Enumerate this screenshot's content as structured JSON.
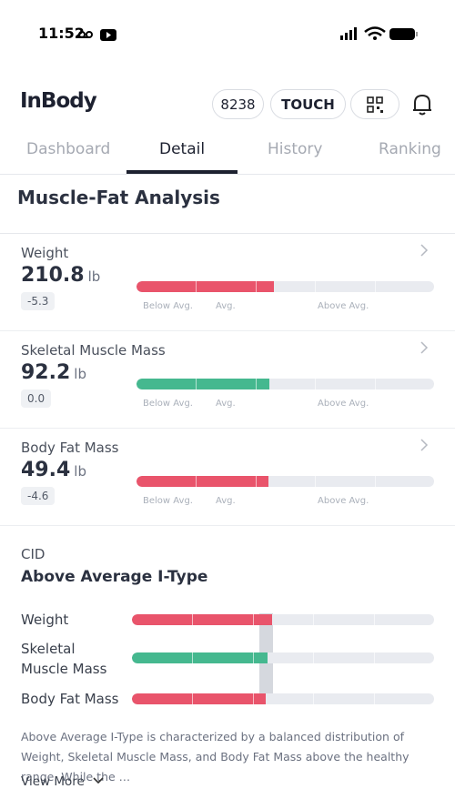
{
  "status_bar": {
    "time": "11:52"
  },
  "header": {
    "logo": "InBody",
    "steps": "8238",
    "touch": "TOUCH"
  },
  "tabs": [
    "Dashboard",
    "Detail",
    "History",
    "Ranking"
  ],
  "section": {
    "title": "Muscle-Fat Analysis",
    "scale": [
      "Below Avg.",
      "Avg.",
      "Above Avg."
    ],
    "items": [
      {
        "label": "Weight",
        "value": "210.8",
        "unit": "lb",
        "change": "-5.3"
      },
      {
        "label": "Skeletal Muscle Mass",
        "value": "92.2",
        "unit": "lb",
        "change": "0.0"
      },
      {
        "label": "Body Fat Mass",
        "value": "49.4",
        "unit": "lb",
        "change": "-4.6"
      }
    ]
  },
  "cid": {
    "label": "CID",
    "type": "Above Average I-Type",
    "rows": [
      "Weight",
      "Skeletal Muscle Mass",
      "Body Fat Mass"
    ],
    "description": "Above Average I-Type is characterized by a balanced distribution of Weight, Skeletal Muscle Mass, and Body Fat Mass above the healthy range. While the …",
    "more": "View More"
  }
}
